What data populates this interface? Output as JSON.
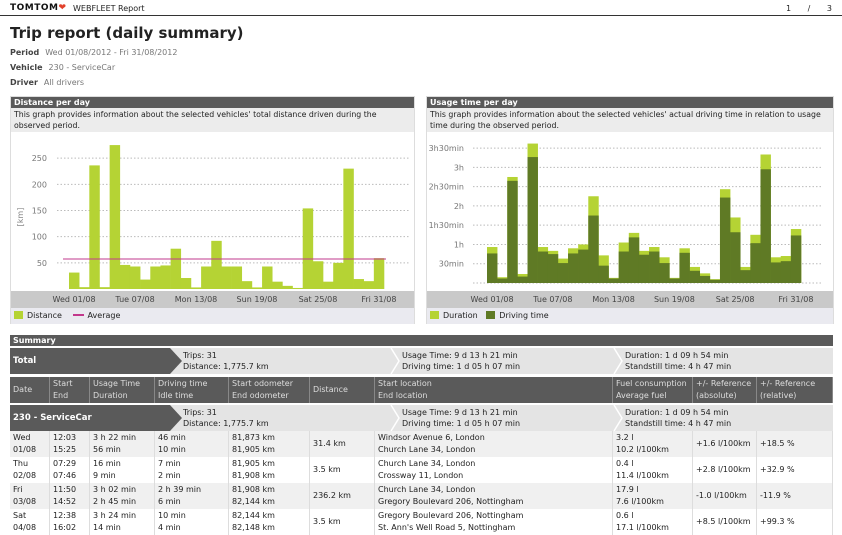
{
  "header": {
    "logo": "TOMTOM",
    "app_title": "WEBFLEET Report",
    "page_current": "1",
    "page_sep": "/",
    "page_total": "3"
  },
  "title": "Trip report (daily summary)",
  "meta": [
    {
      "label": "Period",
      "value": "Wed 01/08/2012 - Fri 31/08/2012"
    },
    {
      "label": "Vehicle",
      "value": "230 - ServiceCar"
    },
    {
      "label": "Driver",
      "value": "All drivers"
    }
  ],
  "colors": {
    "distance": "#b5d334",
    "duration": "#b5d334",
    "driving": "#5f7a25",
    "average": "#c2388c",
    "dark_header": "#5a5a5a"
  },
  "chart_data": [
    {
      "type": "bar",
      "title": "Distance per day",
      "description": "This graph provides information about the selected vehicles' total distance driven during the observed period.",
      "ylabel": "[km]",
      "ylim": [
        0,
        300
      ],
      "yticks": [
        50,
        100,
        150,
        200,
        250
      ],
      "grid": true,
      "legend_position": "bottom-left",
      "categories": [
        "01/08",
        "02/08",
        "03/08",
        "04/08",
        "05/08",
        "06/08",
        "07/08",
        "08/08",
        "09/08",
        "10/08",
        "11/08",
        "12/08",
        "13/08",
        "14/08",
        "15/08",
        "16/08",
        "17/08",
        "18/08",
        "19/08",
        "20/08",
        "21/08",
        "22/08",
        "23/08",
        "24/08",
        "25/08",
        "26/08",
        "27/08",
        "28/08",
        "29/08",
        "30/08",
        "31/08"
      ],
      "xtick_labels": [
        "Wed 01/08",
        "Tue 07/08",
        "Mon 13/08",
        "Sun 19/08",
        "Sat 25/08",
        "Fri 31/08"
      ],
      "series": [
        {
          "name": "Distance",
          "values": [
            31.4,
            3.5,
            236.2,
            3.5,
            275,
            46,
            43,
            18,
            43,
            45,
            77,
            21,
            3,
            43,
            92,
            43,
            43,
            15,
            3,
            43,
            14,
            6,
            2,
            154,
            53,
            14,
            50,
            230,
            19,
            15,
            59
          ]
        },
        {
          "name": "Average",
          "value": 57.3
        }
      ]
    },
    {
      "type": "bar",
      "stacked": false,
      "title": "Usage time per day",
      "description": "This graph provides information about the selected vehicles' actual driving time in relation to usage time during the observed period.",
      "ylabel": "",
      "unit": "minutes",
      "ylim": [
        0,
        235
      ],
      "yticks": [
        {
          "v": 30,
          "label": "30min"
        },
        {
          "v": 60,
          "label": "1h"
        },
        {
          "v": 90,
          "label": "1h30min"
        },
        {
          "v": 120,
          "label": "2h"
        },
        {
          "v": 150,
          "label": "2h30min"
        },
        {
          "v": 180,
          "label": "3h"
        },
        {
          "v": 210,
          "label": "3h30min"
        }
      ],
      "grid": true,
      "legend_position": "bottom-left",
      "xtick_labels": [
        "Wed 01/08",
        "Tue 07/08",
        "Mon 13/08",
        "Sun 19/08",
        "Sat 25/08",
        "Fri 31/08"
      ],
      "series": [
        {
          "name": "Duration",
          "values": [
            56,
            9,
            165,
            14,
            217,
            56,
            50,
            38,
            54,
            60,
            135,
            43,
            8,
            63,
            78,
            50,
            56,
            40,
            8,
            54,
            25,
            15,
            6,
            146,
            102,
            25,
            75,
            200,
            40,
            42,
            84
          ]
        },
        {
          "name": "Driving time",
          "values": [
            46,
            7,
            159,
            10,
            196,
            49,
            45,
            31,
            46,
            52,
            105,
            27,
            7,
            49,
            71,
            44,
            49,
            31,
            7,
            47,
            19,
            11,
            5,
            133,
            79,
            20,
            62,
            177,
            32,
            34,
            74
          ]
        }
      ]
    }
  ],
  "summary": {
    "title": "Summary",
    "total": {
      "label": "Total",
      "trips": "Trips: 31",
      "distance": "Distance: 1,775.7 km",
      "usage": "Usage Time: 9 d 13 h 21 min",
      "driving": "Driving time: 1 d 05 h 07 min",
      "duration": "Duration: 1 d 09 h 54 min",
      "standstill": "Standstill time: 4 h 47 min"
    },
    "columns": [
      [
        "Date",
        ""
      ],
      [
        "Start",
        "End"
      ],
      [
        "Usage Time",
        "Duration"
      ],
      [
        "Driving time",
        "Idle time"
      ],
      [
        "Start odometer",
        "End odometer"
      ],
      [
        "Distance",
        ""
      ],
      [
        "Start location",
        "End location"
      ],
      [
        "Fuel consumption",
        "Average fuel"
      ],
      [
        "+/- Reference",
        "(absolute)"
      ],
      [
        "+/- Reference",
        "(relative)"
      ]
    ],
    "vehicle": {
      "label": "230 - ServiceCar",
      "trips": "Trips: 31",
      "distance": "Distance: 1,775.7 km",
      "usage": "Usage Time: 9 d 13 h 21 min",
      "driving": "Driving time: 1 d 05 h 07 min",
      "duration": "Duration: 1 d 09 h 54 min",
      "standstill": "Standstill time: 4 h 47 min"
    },
    "rows": [
      {
        "day": "Wed",
        "date": "01/08",
        "start": "12:03",
        "end": "15:25",
        "usage": "3 h 22 min",
        "duration": "56 min",
        "driving": "46 min",
        "idle": "10 min",
        "odo_start": "81,873 km",
        "odo_end": "81,905 km",
        "distance": "31.4 km",
        "loc_start": "Windsor Avenue 6, London",
        "loc_end": "Church Lane 34, London",
        "fuel": "3.2 l",
        "avg_fuel": "10.2 l/100km",
        "ref_abs": "+1.6 l/100km",
        "ref_rel": "+18.5 %"
      },
      {
        "day": "Thu",
        "date": "02/08",
        "start": "07:29",
        "end": "07:46",
        "usage": "16 min",
        "duration": "9 min",
        "driving": "7 min",
        "idle": "2 min",
        "odo_start": "81,905 km",
        "odo_end": "81,908 km",
        "distance": "3.5 km",
        "loc_start": "Church Lane 34, London",
        "loc_end": "Crossway 11, London",
        "fuel": "0.4 l",
        "avg_fuel": "11.4 l/100km",
        "ref_abs": "+2.8 l/100km",
        "ref_rel": "+32.9 %"
      },
      {
        "day": "Fri",
        "date": "03/08",
        "start": "11:50",
        "end": "14:52",
        "usage": "3 h 02 min",
        "duration": "2 h 45 min",
        "driving": "2 h 39 min",
        "idle": "6 min",
        "odo_start": "81,908 km",
        "odo_end": "82,144 km",
        "distance": "236.2 km",
        "loc_start": "Church Lane 34, London",
        "loc_end": "Gregory Boulevard 206, Nottingham",
        "fuel": "17.9 l",
        "avg_fuel": "7.6 l/100km",
        "ref_abs": "-1.0 l/100km",
        "ref_rel": "-11.9 %"
      },
      {
        "day": "Sat",
        "date": "04/08",
        "start": "12:38",
        "end": "16:02",
        "usage": "3 h 24 min",
        "duration": "14 min",
        "driving": "10 min",
        "idle": "4 min",
        "odo_start": "82,144 km",
        "odo_end": "82,148 km",
        "distance": "3.5 km",
        "loc_start": "Gregory Boulevard 206, Nottingham",
        "loc_end": "St. Ann's Well Road 5, Nottingham",
        "fuel": "0.6 l",
        "avg_fuel": "17.1 l/100km",
        "ref_abs": "+8.5 l/100km",
        "ref_rel": "+99.3 %"
      }
    ]
  }
}
